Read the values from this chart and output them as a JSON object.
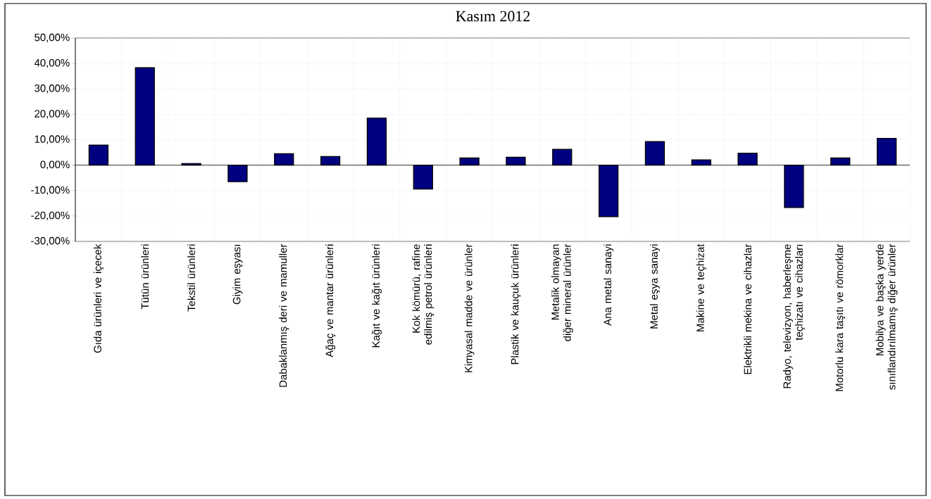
{
  "chart_data": {
    "type": "bar",
    "title": "Kasım 2012",
    "categories": [
      "Gıda ürünleri ve içecek",
      "Tütün ürünleri",
      "Tekstil ürünleri",
      "Giyim eşyası",
      "Dabaklanmış deri ve mamuller",
      "Ağaç ve mantar ürünleri",
      "Kağıt ve kağıt ürünleri",
      "Kok kömürü, rafine edilmiş petrol ürünleri",
      "Kimyasal madde ve ürünler",
      "Plastik ve kauçuk ürünleri",
      "Metalik olmayan diğer mineral ürünler",
      "Ana metal sanayi",
      "Metal eşya sanayi",
      "Makine ve teçhizat",
      "Elektrikli mekina ve cihazlar",
      "Radyo, televizyon, haberleşme teçhizatı ve cihazları",
      "Motorlu kara taşıtı ve römorklar",
      "Mobilya ve başka yerde sınıflandırılmamış diğer ürünler"
    ],
    "values": [
      7.9,
      38.3,
      0.6,
      -6.5,
      4.5,
      3.4,
      18.5,
      -9.4,
      2.8,
      3.1,
      6.2,
      -20.3,
      9.3,
      2.1,
      4.7,
      -16.7,
      2.8,
      10.5
    ],
    "color": "#000080",
    "ylim": [
      -30,
      50
    ],
    "yticks": [
      {
        "value": -30,
        "label": "-30,00%"
      },
      {
        "value": -20,
        "label": "-20,00%"
      },
      {
        "value": -10,
        "label": "-10,00%"
      },
      {
        "value": 0,
        "label": "0,00%"
      },
      {
        "value": 10,
        "label": "10,00%"
      },
      {
        "value": 20,
        "label": "20,00%"
      },
      {
        "value": 30,
        "label": "30,00%"
      },
      {
        "value": 40,
        "label": "40,00%"
      },
      {
        "value": 50,
        "label": "50,00%"
      }
    ],
    "grid": true
  }
}
